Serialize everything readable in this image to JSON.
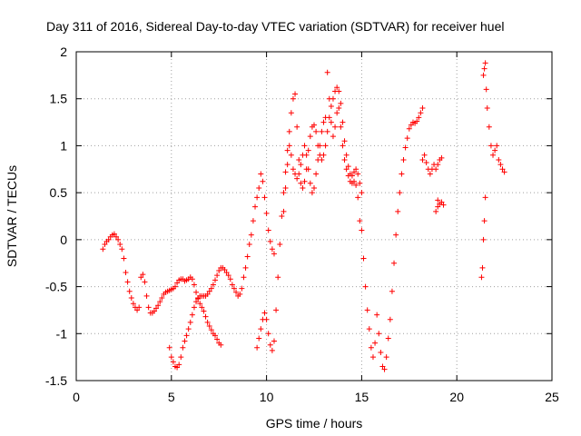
{
  "chart_data": {
    "type": "scatter",
    "title": "Day 311 of 2016, Sidereal Day-to-day VTEC variation (SDTVAR) for receiver huel",
    "xlabel": "GPS time / hours",
    "ylabel": "SDTVAR / TECUs",
    "xlim": [
      0,
      25
    ],
    "ylim": [
      -1.5,
      2
    ],
    "xticks": [
      0,
      5,
      10,
      15,
      20,
      25
    ],
    "xtick_labels": [
      "0",
      "5",
      "10",
      "15",
      "20",
      "25"
    ],
    "yticks": [
      -1.5,
      -1,
      -0.5,
      0,
      0.5,
      1,
      1.5,
      2
    ],
    "ytick_labels": [
      "-1.5",
      "-1",
      "-0.5",
      "0",
      "0.5",
      "1",
      "1.5",
      "2"
    ],
    "grid": true,
    "marker": "+",
    "color": "#ff0000",
    "series": [
      {
        "name": "SDTVAR",
        "points": [
          [
            1.4,
            -0.1
          ],
          [
            1.5,
            -0.05
          ],
          [
            1.6,
            -0.02
          ],
          [
            1.7,
            0.0
          ],
          [
            1.8,
            0.03
          ],
          [
            1.9,
            0.05
          ],
          [
            2.0,
            0.06
          ],
          [
            2.1,
            0.03
          ],
          [
            2.2,
            0.0
          ],
          [
            2.3,
            -0.05
          ],
          [
            2.4,
            -0.1
          ],
          [
            2.5,
            -0.2
          ],
          [
            2.6,
            -0.35
          ],
          [
            2.7,
            -0.45
          ],
          [
            2.8,
            -0.55
          ],
          [
            2.9,
            -0.62
          ],
          [
            3.0,
            -0.68
          ],
          [
            3.1,
            -0.72
          ],
          [
            3.2,
            -0.75
          ],
          [
            3.3,
            -0.72
          ],
          [
            3.4,
            -0.4
          ],
          [
            3.5,
            -0.37
          ],
          [
            3.6,
            -0.45
          ],
          [
            3.7,
            -0.6
          ],
          [
            3.8,
            -0.72
          ],
          [
            3.9,
            -0.78
          ],
          [
            4.0,
            -0.78
          ],
          [
            4.1,
            -0.76
          ],
          [
            4.2,
            -0.73
          ],
          [
            4.3,
            -0.7
          ],
          [
            4.4,
            -0.66
          ],
          [
            4.5,
            -0.62
          ],
          [
            4.6,
            -0.58
          ],
          [
            4.7,
            -0.56
          ],
          [
            4.8,
            -0.55
          ],
          [
            4.9,
            -0.54
          ],
          [
            5.0,
            -0.53
          ],
          [
            5.1,
            -0.52
          ],
          [
            5.2,
            -0.5
          ],
          [
            5.3,
            -0.46
          ],
          [
            5.4,
            -0.43
          ],
          [
            5.5,
            -0.42
          ],
          [
            5.6,
            -0.42
          ],
          [
            5.7,
            -0.44
          ],
          [
            5.8,
            -0.43
          ],
          [
            5.9,
            -0.42
          ],
          [
            6.0,
            -0.4
          ],
          [
            6.1,
            -0.42
          ],
          [
            6.2,
            -0.48
          ],
          [
            6.3,
            -0.56
          ],
          [
            6.4,
            -0.63
          ],
          [
            6.5,
            -0.68
          ],
          [
            6.6,
            -0.72
          ],
          [
            6.7,
            -0.76
          ],
          [
            6.8,
            -0.82
          ],
          [
            6.9,
            -0.88
          ],
          [
            7.0,
            -0.92
          ],
          [
            7.1,
            -0.96
          ],
          [
            7.2,
            -1.0
          ],
          [
            7.3,
            -1.02
          ],
          [
            7.4,
            -1.06
          ],
          [
            7.5,
            -1.1
          ],
          [
            7.6,
            -1.12
          ],
          [
            4.9,
            -1.15
          ],
          [
            5.0,
            -1.25
          ],
          [
            5.1,
            -1.3
          ],
          [
            5.2,
            -1.35
          ],
          [
            5.3,
            -1.36
          ],
          [
            5.4,
            -1.33
          ],
          [
            5.5,
            -1.25
          ],
          [
            5.6,
            -1.15
          ],
          [
            5.7,
            -1.08
          ],
          [
            5.8,
            -1.02
          ],
          [
            5.9,
            -0.95
          ],
          [
            6.0,
            -0.88
          ],
          [
            6.1,
            -0.8
          ],
          [
            6.2,
            -0.72
          ],
          [
            6.3,
            -0.66
          ],
          [
            6.4,
            -0.62
          ],
          [
            6.5,
            -0.6
          ],
          [
            6.6,
            -0.6
          ],
          [
            6.7,
            -0.6
          ],
          [
            6.8,
            -0.6
          ],
          [
            6.9,
            -0.58
          ],
          [
            7.0,
            -0.55
          ],
          [
            7.1,
            -0.52
          ],
          [
            7.2,
            -0.48
          ],
          [
            7.3,
            -0.43
          ],
          [
            7.4,
            -0.38
          ],
          [
            7.5,
            -0.33
          ],
          [
            7.6,
            -0.3
          ],
          [
            7.7,
            -0.3
          ],
          [
            7.8,
            -0.32
          ],
          [
            7.9,
            -0.35
          ],
          [
            8.0,
            -0.38
          ],
          [
            8.1,
            -0.42
          ],
          [
            8.2,
            -0.48
          ],
          [
            8.3,
            -0.52
          ],
          [
            8.4,
            -0.56
          ],
          [
            8.5,
            -0.6
          ],
          [
            8.6,
            -0.58
          ],
          [
            8.7,
            -0.52
          ],
          [
            8.8,
            -0.4
          ],
          [
            8.9,
            -0.3
          ],
          [
            9.0,
            -0.18
          ],
          [
            9.1,
            -0.05
          ],
          [
            9.2,
            0.05
          ],
          [
            9.3,
            0.2
          ],
          [
            9.4,
            0.35
          ],
          [
            9.5,
            0.45
          ],
          [
            9.6,
            0.55
          ],
          [
            9.7,
            0.7
          ],
          [
            9.8,
            0.62
          ],
          [
            9.9,
            0.45
          ],
          [
            10.0,
            0.28
          ],
          [
            10.1,
            0.1
          ],
          [
            10.2,
            -0.02
          ],
          [
            10.3,
            -0.1
          ],
          [
            10.4,
            -0.15
          ],
          [
            9.5,
            -1.15
          ],
          [
            9.6,
            -1.05
          ],
          [
            9.7,
            -0.95
          ],
          [
            9.8,
            -0.85
          ],
          [
            9.9,
            -0.78
          ],
          [
            10.0,
            -0.85
          ],
          [
            10.1,
            -1.0
          ],
          [
            10.2,
            -1.12
          ],
          [
            10.3,
            -1.18
          ],
          [
            10.4,
            -1.08
          ],
          [
            10.5,
            -0.75
          ],
          [
            10.6,
            -0.4
          ],
          [
            10.7,
            -0.05
          ],
          [
            10.8,
            0.25
          ],
          [
            10.9,
            0.5
          ],
          [
            11.0,
            0.72
          ],
          [
            11.1,
            0.95
          ],
          [
            11.2,
            1.15
          ],
          [
            11.3,
            1.35
          ],
          [
            11.4,
            1.5
          ],
          [
            11.5,
            1.55
          ],
          [
            11.6,
            1.2
          ],
          [
            11.7,
            0.85
          ],
          [
            11.8,
            0.6
          ],
          [
            11.9,
            0.55
          ],
          [
            12.0,
            0.62
          ],
          [
            12.1,
            0.75
          ],
          [
            12.2,
            0.95
          ],
          [
            12.3,
            1.1
          ],
          [
            12.4,
            1.2
          ],
          [
            12.5,
            1.22
          ],
          [
            12.6,
            1.15
          ],
          [
            12.7,
            1.0
          ],
          [
            12.8,
            0.9
          ],
          [
            12.9,
            0.85
          ],
          [
            13.0,
            0.9
          ],
          [
            13.1,
            1.0
          ],
          [
            13.2,
            1.15
          ],
          [
            13.3,
            1.3
          ],
          [
            13.4,
            1.42
          ],
          [
            13.5,
            1.5
          ],
          [
            13.6,
            1.58
          ],
          [
            13.7,
            1.62
          ],
          [
            13.8,
            1.58
          ],
          [
            13.9,
            1.45
          ],
          [
            14.0,
            1.25
          ],
          [
            14.1,
            1.05
          ],
          [
            14.2,
            0.9
          ],
          [
            14.3,
            0.78
          ],
          [
            14.4,
            0.7
          ],
          [
            14.5,
            0.68
          ],
          [
            14.6,
            0.72
          ],
          [
            14.7,
            0.75
          ],
          [
            14.8,
            0.7
          ],
          [
            14.9,
            0.6
          ],
          [
            15.0,
            0.5
          ],
          [
            10.9,
            0.3
          ],
          [
            11.0,
            0.55
          ],
          [
            11.1,
            0.8
          ],
          [
            11.2,
            1.0
          ],
          [
            11.3,
            0.9
          ],
          [
            11.4,
            0.75
          ],
          [
            11.5,
            0.7
          ],
          [
            11.6,
            0.65
          ],
          [
            11.7,
            0.7
          ],
          [
            11.8,
            0.8
          ],
          [
            11.9,
            0.9
          ],
          [
            12.0,
            1.0
          ],
          [
            12.1,
            0.9
          ],
          [
            12.2,
            0.75
          ],
          [
            12.3,
            0.6
          ],
          [
            12.4,
            0.5
          ],
          [
            12.5,
            0.55
          ],
          [
            12.6,
            0.7
          ],
          [
            12.7,
            0.85
          ],
          [
            12.8,
            1.0
          ],
          [
            12.9,
            1.15
          ],
          [
            13.0,
            1.25
          ],
          [
            13.1,
            1.3
          ],
          [
            13.2,
            1.78
          ],
          [
            13.3,
            1.5
          ],
          [
            13.4,
            1.25
          ],
          [
            13.5,
            1.1
          ],
          [
            13.6,
            1.2
          ],
          [
            13.7,
            1.35
          ],
          [
            13.8,
            1.4
          ],
          [
            13.9,
            1.2
          ],
          [
            14.0,
            1.0
          ],
          [
            14.1,
            0.85
          ],
          [
            14.2,
            0.75
          ],
          [
            14.3,
            0.68
          ],
          [
            14.4,
            0.62
          ],
          [
            14.5,
            0.6
          ],
          [
            14.6,
            0.62
          ],
          [
            14.7,
            0.58
          ],
          [
            14.8,
            0.45
          ],
          [
            14.9,
            0.2
          ],
          [
            15.0,
            0.1
          ],
          [
            15.1,
            -0.2
          ],
          [
            15.2,
            -0.5
          ],
          [
            15.3,
            -0.75
          ],
          [
            15.4,
            -0.95
          ],
          [
            15.5,
            -1.15
          ],
          [
            15.6,
            -1.25
          ],
          [
            15.7,
            -1.1
          ],
          [
            15.8,
            -0.8
          ],
          [
            15.9,
            -1.0
          ],
          [
            16.0,
            -1.2
          ],
          [
            16.1,
            -1.35
          ],
          [
            16.2,
            -1.38
          ],
          [
            16.3,
            -1.25
          ],
          [
            16.4,
            -1.05
          ],
          [
            16.5,
            -0.85
          ],
          [
            16.6,
            -0.55
          ],
          [
            16.7,
            -0.25
          ],
          [
            16.8,
            0.05
          ],
          [
            16.9,
            0.3
          ],
          [
            17.0,
            0.5
          ],
          [
            17.1,
            0.7
          ],
          [
            17.2,
            0.85
          ],
          [
            17.3,
            0.98
          ],
          [
            17.4,
            1.08
          ],
          [
            17.5,
            1.18
          ],
          [
            17.6,
            1.22
          ],
          [
            17.7,
            1.25
          ],
          [
            17.8,
            1.24
          ],
          [
            17.9,
            1.26
          ],
          [
            18.0,
            1.3
          ],
          [
            18.1,
            1.35
          ],
          [
            18.2,
            1.4
          ],
          [
            18.2,
            0.85
          ],
          [
            18.3,
            0.9
          ],
          [
            18.4,
            0.82
          ],
          [
            18.5,
            0.75
          ],
          [
            18.6,
            0.7
          ],
          [
            18.7,
            0.75
          ],
          [
            18.8,
            0.8
          ],
          [
            18.9,
            0.75
          ],
          [
            19.0,
            0.8
          ],
          [
            19.1,
            0.85
          ],
          [
            19.2,
            0.87
          ],
          [
            18.9,
            0.3
          ],
          [
            19.0,
            0.35
          ],
          [
            19.1,
            0.38
          ],
          [
            19.2,
            0.4
          ],
          [
            19.3,
            0.37
          ],
          [
            19.0,
            0.42
          ],
          [
            21.3,
            -0.4
          ],
          [
            21.35,
            -0.3
          ],
          [
            21.4,
            0.0
          ],
          [
            21.45,
            0.2
          ],
          [
            21.5,
            0.45
          ],
          [
            21.4,
            1.75
          ],
          [
            21.45,
            1.82
          ],
          [
            21.5,
            1.88
          ],
          [
            21.55,
            1.6
          ],
          [
            21.6,
            1.4
          ],
          [
            21.7,
            1.2
          ],
          [
            21.8,
            1.0
          ],
          [
            21.9,
            0.9
          ],
          [
            22.0,
            0.95
          ],
          [
            22.1,
            1.0
          ],
          [
            22.2,
            0.85
          ],
          [
            22.3,
            0.8
          ],
          [
            22.4,
            0.75
          ],
          [
            22.5,
            0.72
          ]
        ]
      }
    ]
  }
}
